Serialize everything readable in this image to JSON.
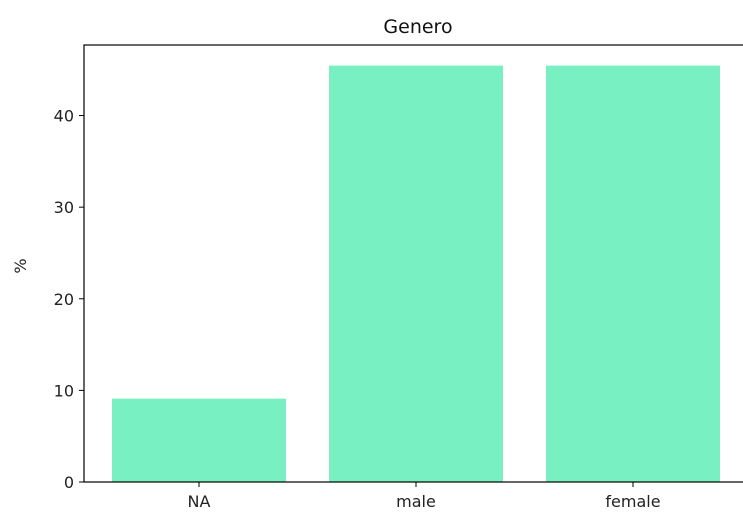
{
  "chart_data": {
    "type": "bar",
    "title": "Genero",
    "xlabel": "",
    "ylabel": "%",
    "categories": [
      "NA",
      "male",
      "female"
    ],
    "values": [
      9.1,
      45.45,
      45.45
    ],
    "ylim": [
      0,
      47.7
    ],
    "yticks": [
      0,
      10,
      20,
      30,
      40
    ],
    "grid": false,
    "bar_color": "#78f0c1"
  }
}
